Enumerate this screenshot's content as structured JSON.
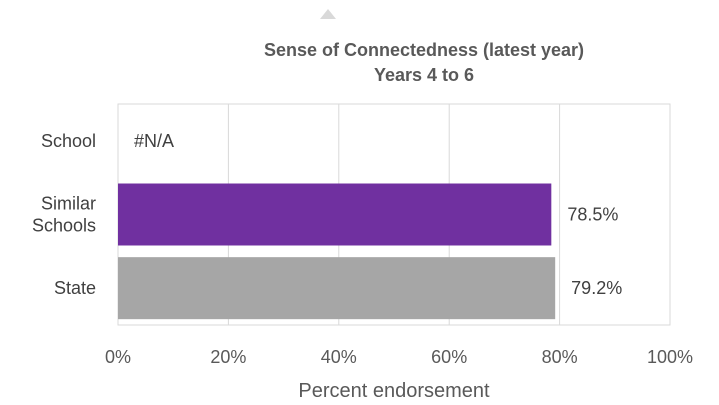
{
  "chart_data": {
    "type": "bar",
    "orientation": "horizontal",
    "title": "Sense of Connectedness (latest year)",
    "subtitle": "Years 4 to 6",
    "xlabel": "Percent endorsement",
    "ylabel": "",
    "categories": [
      "School",
      "Similar Schools",
      "State"
    ],
    "category_lines": [
      [
        "School"
      ],
      [
        "Similar",
        "Schools"
      ],
      [
        "State"
      ]
    ],
    "values": [
      null,
      78.5,
      79.2
    ],
    "data_labels": [
      "#N/A",
      "78.5%",
      "79.2%"
    ],
    "bar_colors": [
      "#7030A0",
      "#7030A0",
      "#A6A6A6"
    ],
    "xlim": [
      0,
      100
    ],
    "ticks": [
      0,
      20,
      40,
      60,
      80,
      100
    ],
    "tick_labels": [
      "0%",
      "20%",
      "40%",
      "60%",
      "80%",
      "100%"
    ],
    "grid": true
  },
  "colors": {
    "text": "#595959",
    "grid": "#D9D9D9",
    "plot_border": "#D9D9D9",
    "marker": "#D9D9D9"
  }
}
